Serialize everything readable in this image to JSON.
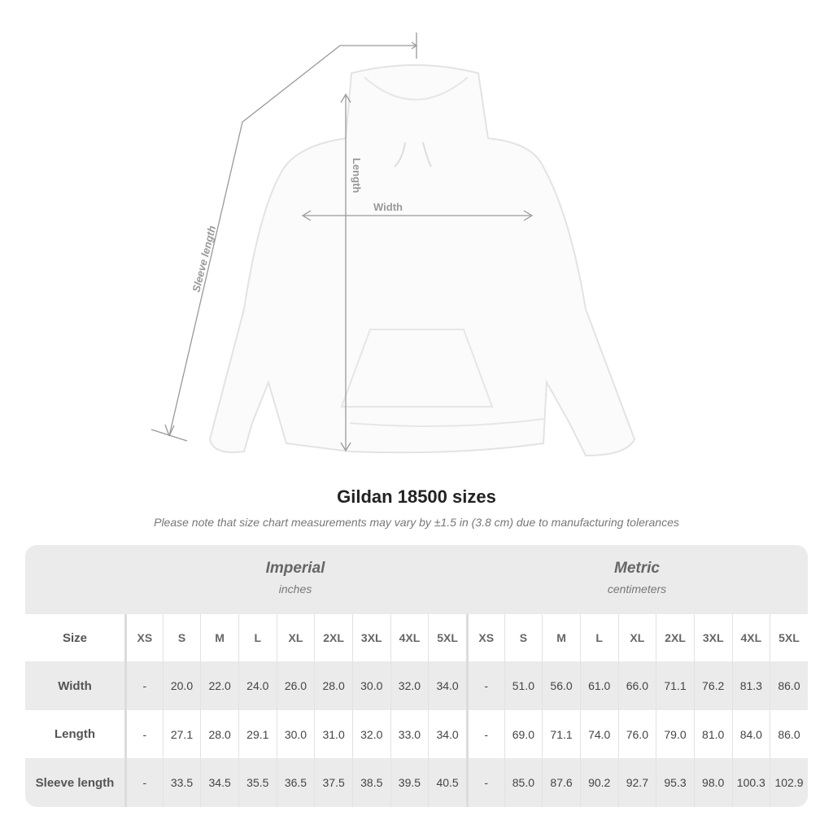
{
  "illustration": {
    "labels": {
      "sleeve": "Sleeve length",
      "length": "Length",
      "width": "Width"
    }
  },
  "title": "Gildan 18500 sizes",
  "note": "Please note that size chart measurements may vary by ±1.5 in (3.8 cm) due to manufacturing tolerances",
  "groups": {
    "imperial": {
      "name": "Imperial",
      "unit": "inches"
    },
    "metric": {
      "name": "Metric",
      "unit": "centimeters"
    }
  },
  "table": {
    "size_label": "Size",
    "sizes": [
      "XS",
      "S",
      "M",
      "L",
      "XL",
      "2XL",
      "3XL",
      "4XL",
      "5XL"
    ],
    "rows": [
      {
        "label": "Width",
        "imperial": [
          "-",
          "20.0",
          "22.0",
          "24.0",
          "26.0",
          "28.0",
          "30.0",
          "32.0",
          "34.0"
        ],
        "metric": [
          "-",
          "51.0",
          "56.0",
          "61.0",
          "66.0",
          "71.1",
          "76.2",
          "81.3",
          "86.0"
        ]
      },
      {
        "label": "Length",
        "imperial": [
          "-",
          "27.1",
          "28.0",
          "29.1",
          "30.0",
          "31.0",
          "32.0",
          "33.0",
          "34.0"
        ],
        "metric": [
          "-",
          "69.0",
          "71.1",
          "74.0",
          "76.0",
          "79.0",
          "81.0",
          "84.0",
          "86.0"
        ]
      },
      {
        "label": "Sleeve length",
        "imperial": [
          "-",
          "33.5",
          "34.5",
          "35.5",
          "36.5",
          "37.5",
          "38.5",
          "39.5",
          "40.5"
        ],
        "metric": [
          "-",
          "85.0",
          "87.6",
          "90.2",
          "92.7",
          "95.3",
          "98.0",
          "100.3",
          "102.9"
        ]
      }
    ]
  }
}
